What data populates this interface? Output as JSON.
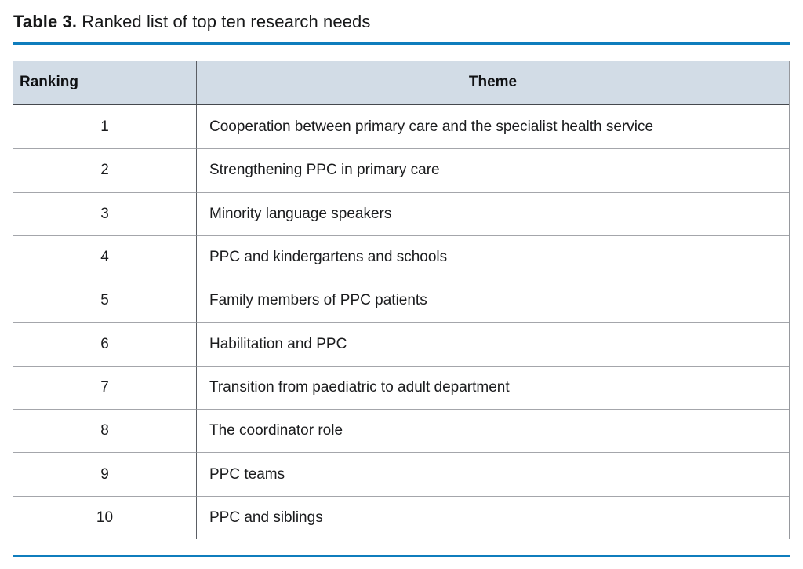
{
  "caption": {
    "label": "Table 3.",
    "text": " Ranked list of top ten research needs"
  },
  "colors": {
    "accent_blue": "#0f7dbd",
    "header_bg": "#d2dce6"
  },
  "table": {
    "columns": [
      {
        "key": "ranking",
        "label": "Ranking"
      },
      {
        "key": "theme",
        "label": "Theme"
      }
    ],
    "rows": [
      {
        "rank": "1",
        "theme": "Cooperation between primary care and the specialist health service"
      },
      {
        "rank": "2",
        "theme": "Strengthening PPC in primary care"
      },
      {
        "rank": "3",
        "theme": "Minority language speakers"
      },
      {
        "rank": "4",
        "theme": "PPC and kindergartens and schools"
      },
      {
        "rank": "5",
        "theme": "Family members of PPC patients"
      },
      {
        "rank": "6",
        "theme": "Habilitation and PPC"
      },
      {
        "rank": "7",
        "theme": "Transition from paediatric to adult department"
      },
      {
        "rank": "8",
        "theme": "The coordinator role"
      },
      {
        "rank": "9",
        "theme": "PPC teams"
      },
      {
        "rank": "10",
        "theme": "PPC and siblings"
      }
    ]
  }
}
